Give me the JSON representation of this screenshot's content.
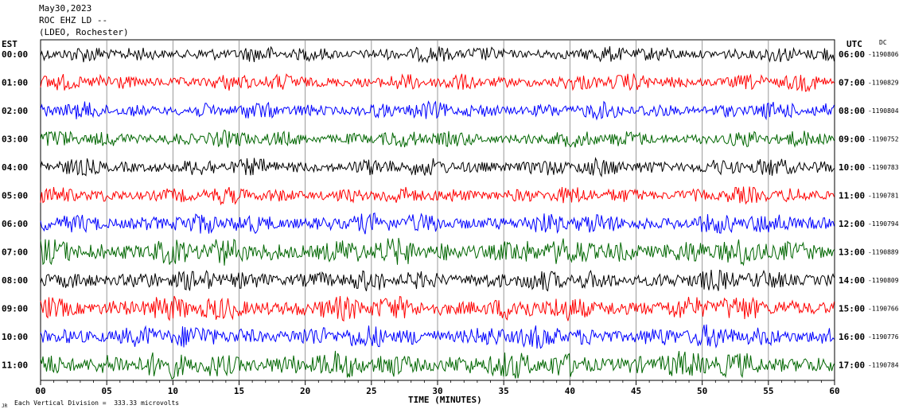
{
  "header": {
    "date": "May30,2023",
    "station": "ROC EHZ LD --",
    "network": "(LDEO, Rochester)"
  },
  "left_axis_title": "EST",
  "right_axis_title": "UTC",
  "dc_title": "DC",
  "footer": {
    "scale_text": "Each Vertical Division =  333.33 microvolts",
    "corner_mark": "JR"
  },
  "colors": {
    "black": "#000000",
    "red": "#ff0000",
    "blue": "#0000ff",
    "green": "#006600",
    "grid": "#808080"
  },
  "chart_data": {
    "type": "line",
    "title": "",
    "xlabel": "TIME (MINUTES)",
    "ylabel": "",
    "xlim": [
      0,
      60
    ],
    "x_ticks": [
      "00",
      "05",
      "10",
      "15",
      "20",
      "25",
      "30",
      "35",
      "40",
      "45",
      "50",
      "55",
      "60"
    ],
    "series": [
      {
        "est": "00:00",
        "utc": "06:00",
        "dc": "-1190806",
        "color": "black",
        "noise": 0.35
      },
      {
        "est": "01:00",
        "utc": "07:00",
        "dc": "-1190829",
        "color": "red",
        "noise": 0.4
      },
      {
        "est": "02:00",
        "utc": "08:00",
        "dc": "-1190804",
        "color": "blue",
        "noise": 0.4
      },
      {
        "est": "03:00",
        "utc": "09:00",
        "dc": "-1190752",
        "color": "green",
        "noise": 0.4
      },
      {
        "est": "04:00",
        "utc": "10:00",
        "dc": "-1190783",
        "color": "black",
        "noise": 0.45
      },
      {
        "est": "05:00",
        "utc": "11:00",
        "dc": "-1190781",
        "color": "red",
        "noise": 0.4
      },
      {
        "est": "06:00",
        "utc": "12:00",
        "dc": "-1190794",
        "color": "blue",
        "noise": 0.6
      },
      {
        "est": "07:00",
        "utc": "13:00",
        "dc": "-1190889",
        "color": "green",
        "noise": 0.9
      },
      {
        "est": "08:00",
        "utc": "14:00",
        "dc": "-1190809",
        "color": "black",
        "noise": 0.6
      },
      {
        "est": "09:00",
        "utc": "15:00",
        "dc": "-1190766",
        "color": "red",
        "noise": 0.8
      },
      {
        "est": "10:00",
        "utc": "16:00",
        "dc": "-1190776",
        "color": "blue",
        "noise": 0.7
      },
      {
        "est": "11:00",
        "utc": "17:00",
        "dc": "-1190784",
        "color": "green",
        "noise": 0.9
      }
    ]
  }
}
